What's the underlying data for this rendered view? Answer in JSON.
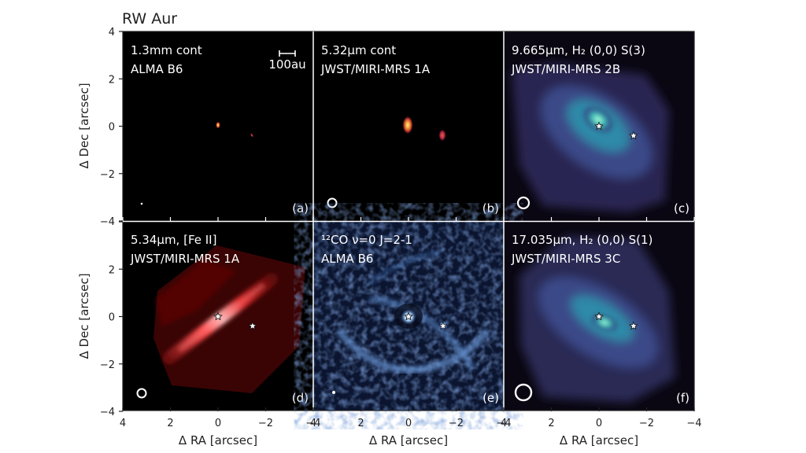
{
  "figure": {
    "title": "RW Aur",
    "xlabel": "Δ RA [arcsec]",
    "ylabel": "Δ Dec [arcsec]",
    "x_ticks": [
      "4",
      "2",
      "0",
      "−2",
      "−4"
    ],
    "y_ticks": [
      "4",
      "2",
      "0",
      "−2",
      "−4"
    ],
    "x_range_arcsec": [
      4,
      -4
    ],
    "y_range_arcsec": [
      -4,
      4
    ],
    "scale_bar_label": "100au"
  },
  "panels": [
    {
      "id": "a",
      "line1": "1.3mm cont",
      "line2": "ALMA B6",
      "tag": "(a)",
      "colormap": "inferno",
      "background": "#000000"
    },
    {
      "id": "b",
      "line1": "5.32μm cont",
      "line2": "JWST/MIRI-MRS 1A",
      "tag": "(b)",
      "colormap": "inferno",
      "background": "#000000"
    },
    {
      "id": "c",
      "line1": "9.665μm, H₂ (0,0) S(3)",
      "line2": "JWST/MIRI-MRS 2B",
      "tag": "(c)",
      "colormap": "mako",
      "background": "#0a0712"
    },
    {
      "id": "d",
      "line1": "5.34μm, [Fe II]",
      "line2": "JWST/MIRI-MRS 1A",
      "tag": "(d)",
      "colormap": "reds",
      "background": "#000000"
    },
    {
      "id": "e",
      "line1": "¹²CO ν=0 J=2-1",
      "line2": "ALMA B6",
      "tag": "(e)",
      "colormap": "blues",
      "background": "#0b1530"
    },
    {
      "id": "f",
      "line1": "17.035μm, H₂ (0,0) S(1)",
      "line2": "JWST/MIRI-MRS 3C",
      "tag": "(f)",
      "colormap": "mako",
      "background": "#0a0712"
    }
  ],
  "star_positions_arcsec": [
    [
      0,
      0
    ],
    [
      -1.45,
      -0.4
    ]
  ],
  "colors": {
    "inferno_peak": "#f7c840",
    "red_jet": "#d82020",
    "mako_peak": "#5fe0c0",
    "blue_peak": "#4f88c8"
  }
}
